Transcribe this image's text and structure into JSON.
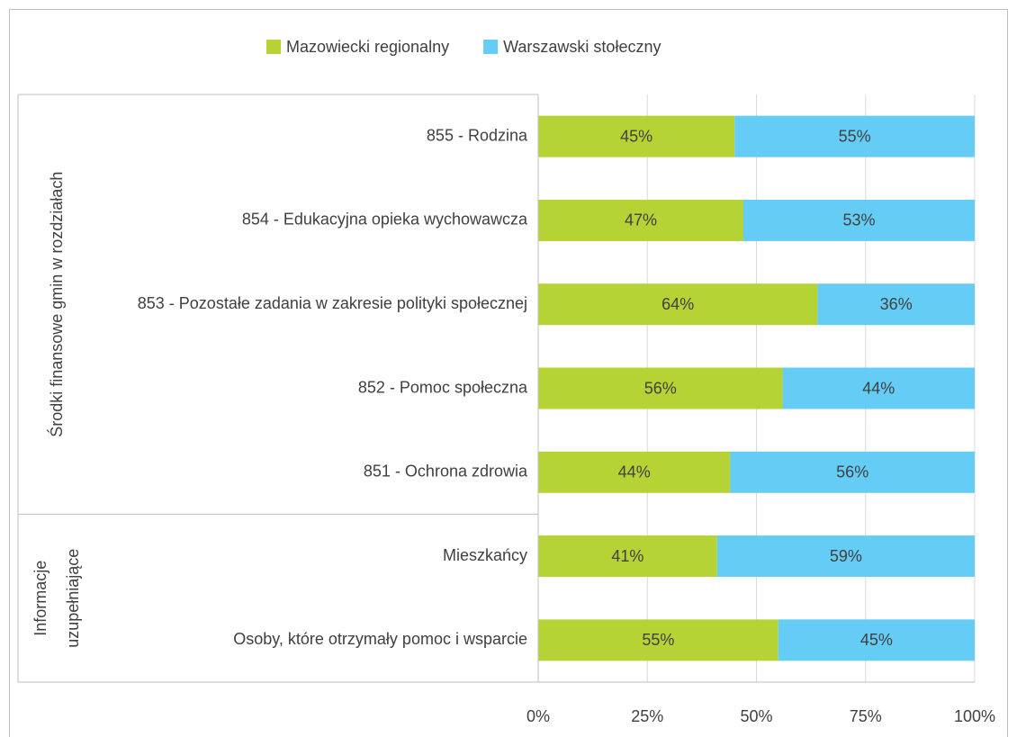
{
  "chart_data": {
    "type": "stacked_bar_100",
    "orientation": "horizontal",
    "category_groups": [
      {
        "label": "Środki finansowe gmin w rozdziałach",
        "categories": [
          "855 - Rodzina",
          "854 - Edukacyjna opieka wychowawcza",
          "853 - Pozostałe zadania w zakresie polityki społecznej",
          "852 - Pomoc społeczna",
          "851 - Ochrona zdrowia"
        ]
      },
      {
        "label": "Informacje uzupełniające",
        "categories": [
          "Mieszkańcy",
          "Osoby, które otrzymały pomoc i wsparcie"
        ]
      }
    ],
    "series": [
      {
        "name": "Mazowiecki regionalny",
        "color": "#b5d334",
        "values": [
          45,
          47,
          64,
          56,
          44,
          41,
          55
        ],
        "value_labels": [
          "45%",
          "47%",
          "64%",
          "56%",
          "44%",
          "41%",
          "55%"
        ]
      },
      {
        "name": "Warszawski stołeczny",
        "color": "#65cdf5",
        "values": [
          55,
          53,
          36,
          44,
          56,
          59,
          45
        ],
        "value_labels": [
          "55%",
          "53%",
          "36%",
          "44%",
          "56%",
          "59%",
          "45%"
        ]
      }
    ],
    "xlim": [
      0,
      100
    ],
    "xticks": [
      {
        "value": 0,
        "label": "0%"
      },
      {
        "value": 25,
        "label": "25%"
      },
      {
        "value": 50,
        "label": "50%"
      },
      {
        "value": 75,
        "label": "75%"
      },
      {
        "value": 100,
        "label": "100%"
      }
    ],
    "grid": true,
    "legend": "top"
  }
}
